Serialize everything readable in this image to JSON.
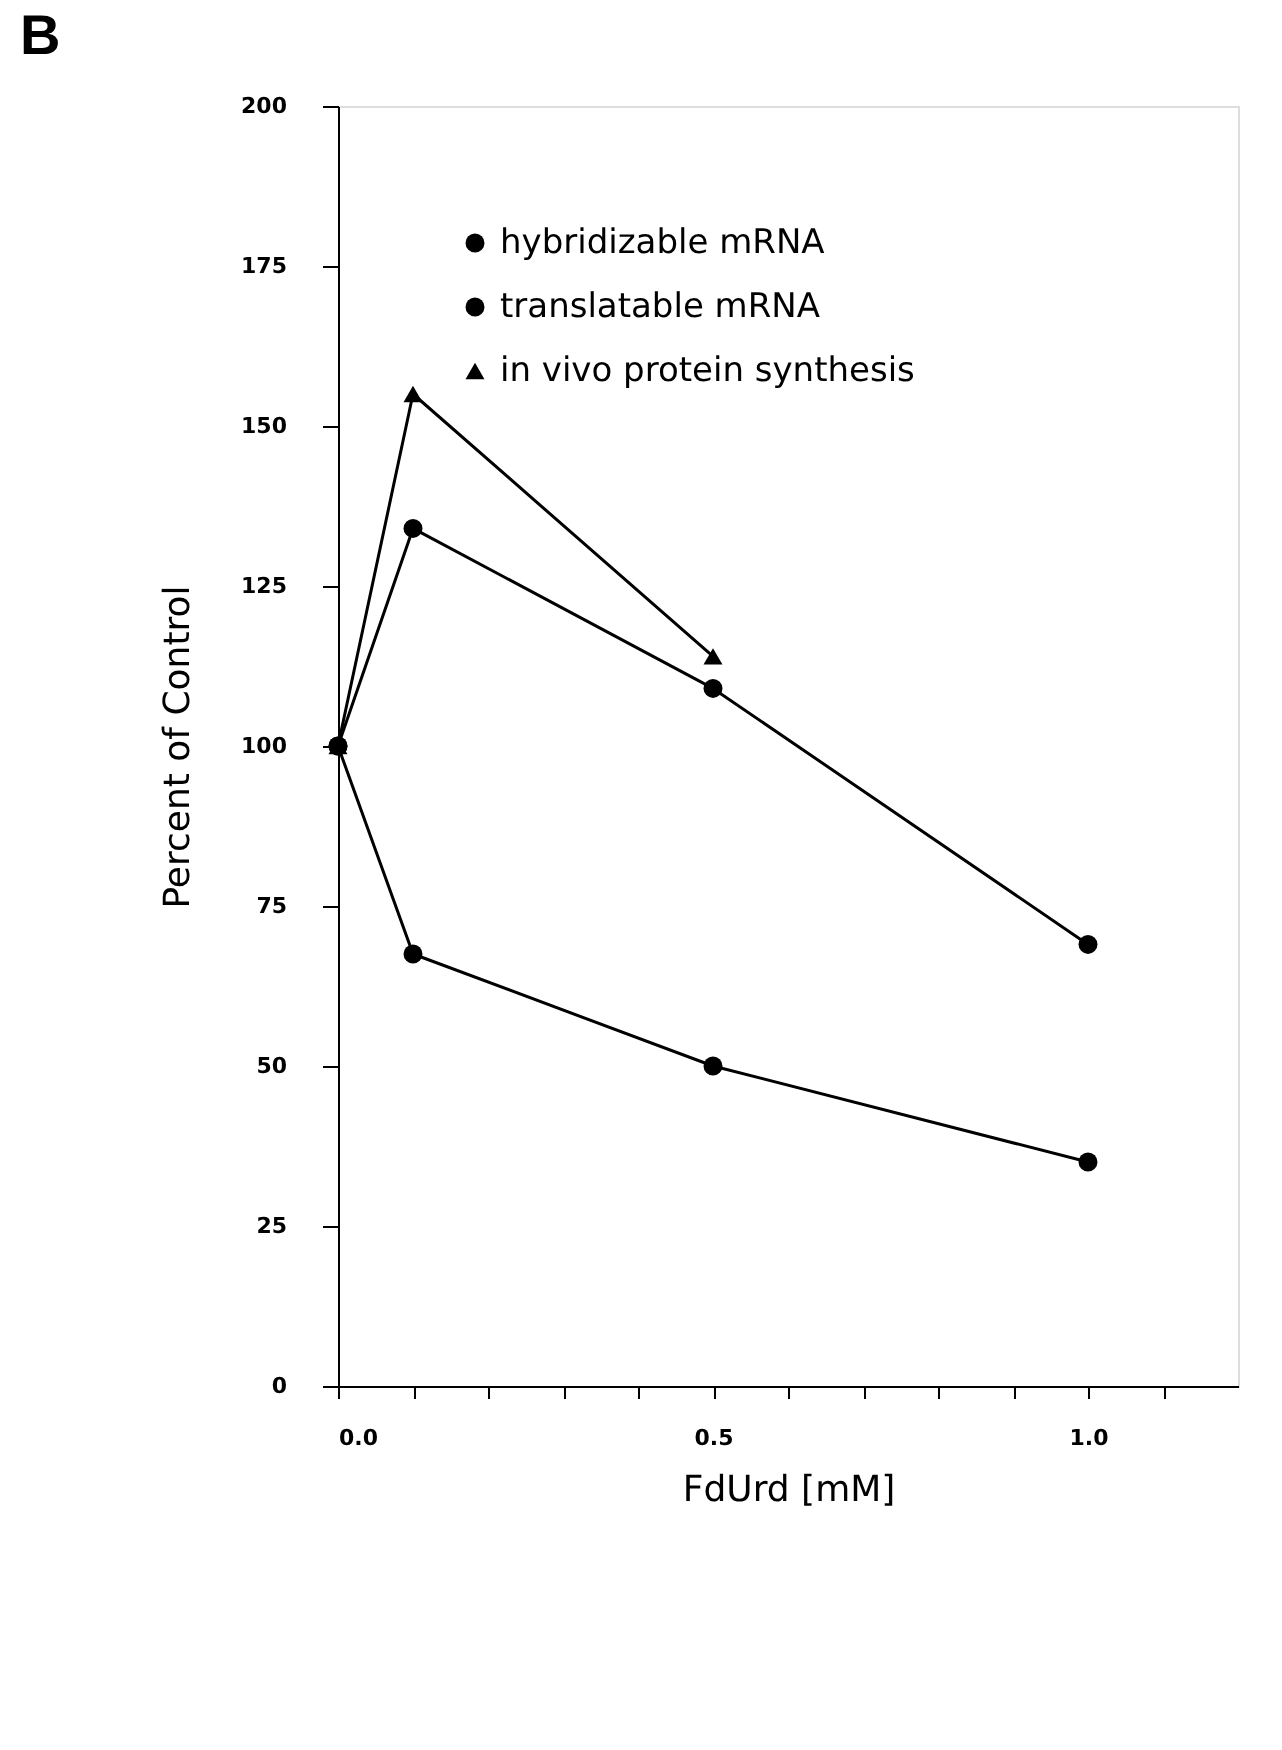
{
  "chart_data": {
    "type": "line",
    "title": "B",
    "xlabel": "FdUrd   [mM]",
    "ylabel": "Percent  of Control",
    "xlim": [
      0,
      1.2
    ],
    "ylim": [
      0,
      200
    ],
    "xticks": [
      {
        "value": 0,
        "label": "0.0"
      },
      {
        "value": 0.1,
        "label": null
      },
      {
        "value": 0.2,
        "label": null
      },
      {
        "value": 0.3,
        "label": null
      },
      {
        "value": 0.4,
        "label": null
      },
      0.5,
      {
        "value": 0.6,
        "label": null
      },
      {
        "value": 0.7,
        "label": null
      },
      {
        "value": 0.8,
        "label": null
      },
      {
        "value": 0.9,
        "label": null
      },
      {
        "value": 1,
        "label": "1.0"
      },
      {
        "value": 1.1,
        "label": null
      }
    ],
    "yticks": [
      0,
      25,
      50,
      75,
      100,
      125,
      150,
      175,
      200
    ],
    "grid": false,
    "legend": "top left",
    "line_style": "solid",
    "series": [
      {
        "name": "hybridizable mRNA",
        "color": "#000000",
        "marker": "circle",
        "x": [
          0,
          0.1,
          0.5,
          1.0
        ],
        "values": [
          100,
          67.5,
          50,
          35
        ]
      },
      {
        "name": "translatable mRNA",
        "color": "#000000",
        "marker": "circle",
        "x": [
          0,
          0.1,
          0.5,
          1.0
        ],
        "values": [
          100,
          134,
          109,
          69
        ]
      },
      {
        "name": "in vivo protein synthesis",
        "color": "#000000",
        "marker": "triangle",
        "x": [
          0,
          0.1,
          0.5
        ],
        "values": [
          100,
          155,
          114
        ]
      }
    ]
  }
}
